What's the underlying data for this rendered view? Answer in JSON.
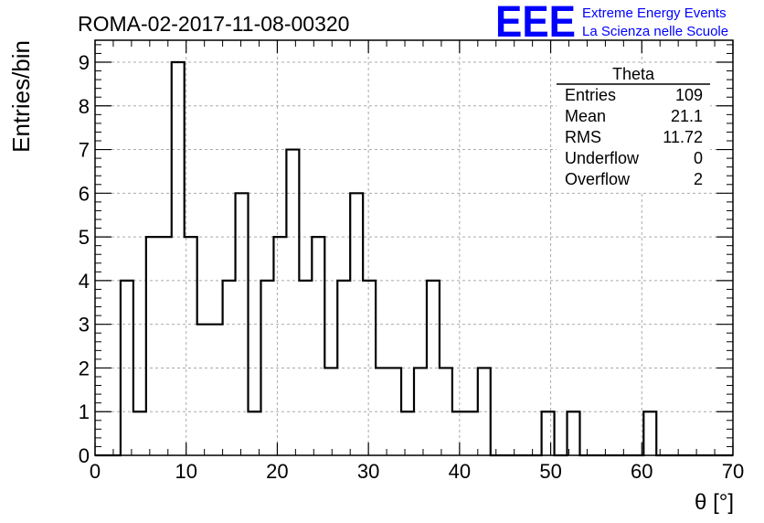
{
  "header": {
    "run_title": "ROMA-02-2017-11-08-00320",
    "logo_text": "EEE",
    "logo_line1": "Extreme Energy Events",
    "logo_line2": "La Scienza nelle Scuole",
    "logo_color": "#0000ff"
  },
  "stats": {
    "title": "Theta",
    "rows": [
      {
        "label": "Entries",
        "value": "109"
      },
      {
        "label": "Mean",
        "value": "21.1"
      },
      {
        "label": "RMS",
        "value": "11.72"
      },
      {
        "label": "Underflow",
        "value": "0"
      },
      {
        "label": "Overflow",
        "value": "2"
      }
    ]
  },
  "chart_data": {
    "type": "bar",
    "histogram": true,
    "title": "",
    "xlabel": "θ [°]",
    "ylabel": "Entries/bin",
    "xlim": [
      0,
      70
    ],
    "ylim": [
      0,
      9.5
    ],
    "grid": true,
    "bin_edges": [
      0,
      1.4,
      2.8,
      4.2,
      5.6,
      7.0,
      8.4,
      9.8,
      11.2,
      12.6,
      14.0,
      15.4,
      16.8,
      18.2,
      19.6,
      21.0,
      22.4,
      23.8,
      25.2,
      26.6,
      28.0,
      29.4,
      30.8,
      32.2,
      33.6,
      35.0,
      36.4,
      37.8,
      39.2,
      40.6,
      42.0,
      43.4,
      44.8,
      46.2,
      47.6,
      49.0,
      50.4,
      51.8,
      53.2,
      54.6,
      56.0,
      57.4,
      58.8,
      60.2,
      61.6,
      63.0,
      64.4,
      65.8,
      67.2,
      68.6,
      70.0
    ],
    "values": [
      0,
      0,
      4,
      1,
      5,
      5,
      9,
      5,
      3,
      3,
      4,
      6,
      1,
      4,
      5,
      7,
      4,
      5,
      2,
      4,
      6,
      4,
      2,
      2,
      1,
      2,
      4,
      2,
      1,
      1,
      2,
      0,
      0,
      0,
      0,
      1,
      0,
      1,
      0,
      0,
      0,
      0,
      0,
      1,
      0,
      0,
      0,
      0,
      0,
      0
    ],
    "x_ticks": [
      "0",
      "10",
      "20",
      "30",
      "40",
      "50",
      "60",
      "70"
    ],
    "y_ticks": [
      "0",
      "1",
      "2",
      "3",
      "4",
      "5",
      "6",
      "7",
      "8",
      "9"
    ]
  }
}
